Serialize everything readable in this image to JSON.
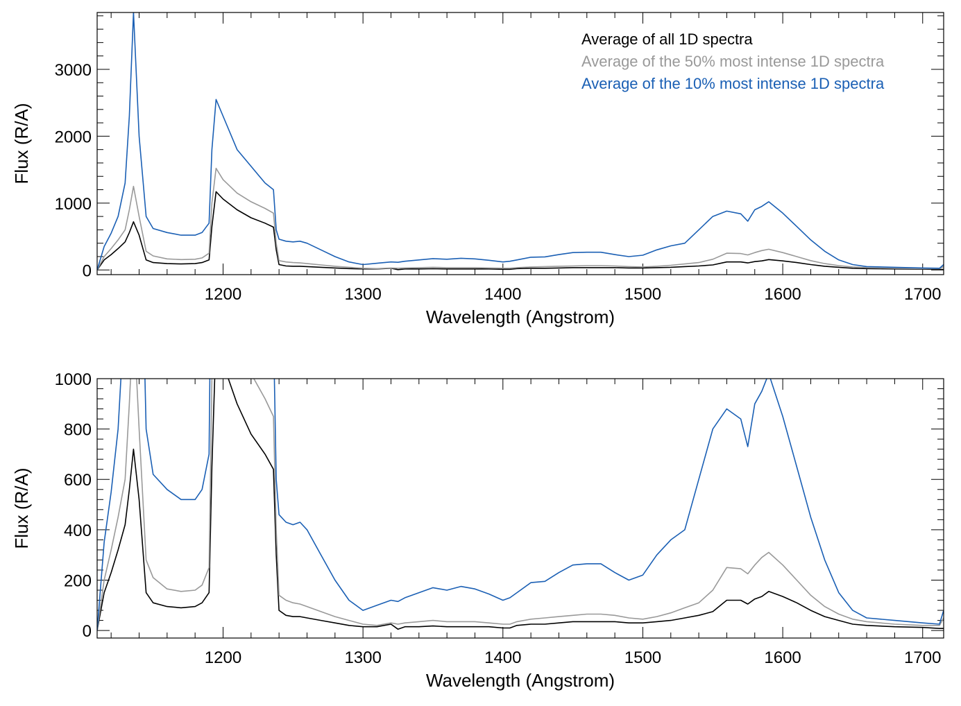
{
  "chart_data": [
    {
      "type": "line",
      "title": "",
      "xlabel": "Wavelength (Angstrom)",
      "ylabel": "Flux (R/A)",
      "xlim": [
        1110,
        1715
      ],
      "ylim": [
        -70,
        3850
      ],
      "xticks": [
        1200,
        1300,
        1400,
        1500,
        1600,
        1700
      ],
      "xtick_labels": [
        "1200",
        "1300",
        "1400",
        "1500",
        "1600",
        "1700"
      ],
      "yticks": [
        0,
        1000,
        2000,
        3000
      ],
      "ytick_labels": [
        "0",
        "1000",
        "2000",
        "3000"
      ],
      "legend": {
        "position": "top-right",
        "entries": [
          {
            "label": "Average of all 1D spectra",
            "color": "#000000"
          },
          {
            "label": "Average of the 50% most intense 1D spectra",
            "color": "#999999"
          },
          {
            "label": "Average of the 10% most intense 1D spectra",
            "color": "#1a5fb4"
          }
        ]
      },
      "series": [
        {
          "name": "Average of all 1D spectra",
          "color": "#000000",
          "x": [
            1110,
            1115,
            1120,
            1125,
            1130,
            1133,
            1136,
            1140,
            1145,
            1150,
            1160,
            1170,
            1180,
            1185,
            1190,
            1192,
            1195,
            1200,
            1210,
            1220,
            1230,
            1236,
            1238,
            1240,
            1245,
            1250,
            1255,
            1260,
            1270,
            1280,
            1290,
            1300,
            1310,
            1320,
            1325,
            1330,
            1340,
            1350,
            1360,
            1370,
            1380,
            1390,
            1400,
            1405,
            1410,
            1420,
            1430,
            1440,
            1450,
            1460,
            1470,
            1480,
            1490,
            1500,
            1510,
            1520,
            1530,
            1540,
            1550,
            1560,
            1570,
            1575,
            1580,
            1585,
            1590,
            1600,
            1610,
            1620,
            1630,
            1640,
            1650,
            1660,
            1680,
            1700,
            1712,
            1715
          ],
          "y": [
            0,
            150,
            230,
            320,
            420,
            560,
            720,
            520,
            150,
            110,
            95,
            90,
            95,
            110,
            150,
            650,
            1170,
            1060,
            900,
            780,
            700,
            640,
            300,
            80,
            60,
            55,
            55,
            50,
            40,
            30,
            20,
            15,
            15,
            25,
            5,
            15,
            15,
            18,
            15,
            15,
            15,
            15,
            10,
            10,
            20,
            25,
            25,
            30,
            35,
            35,
            35,
            35,
            30,
            30,
            35,
            40,
            50,
            60,
            75,
            120,
            120,
            105,
            125,
            135,
            155,
            135,
            110,
            80,
            55,
            40,
            25,
            20,
            15,
            12,
            8,
            8
          ]
        },
        {
          "name": "Average of the 50% most intense 1D spectra",
          "color": "#999999",
          "x": [
            1110,
            1115,
            1120,
            1125,
            1130,
            1133,
            1136,
            1140,
            1145,
            1150,
            1160,
            1170,
            1180,
            1185,
            1190,
            1192,
            1195,
            1200,
            1210,
            1220,
            1230,
            1236,
            1238,
            1240,
            1245,
            1250,
            1255,
            1260,
            1270,
            1280,
            1290,
            1300,
            1310,
            1320,
            1325,
            1330,
            1340,
            1350,
            1360,
            1370,
            1380,
            1390,
            1400,
            1405,
            1410,
            1420,
            1430,
            1440,
            1450,
            1460,
            1470,
            1480,
            1490,
            1500,
            1510,
            1520,
            1530,
            1540,
            1550,
            1560,
            1570,
            1575,
            1580,
            1585,
            1590,
            1600,
            1610,
            1620,
            1630,
            1640,
            1650,
            1660,
            1680,
            1700,
            1712,
            1715
          ],
          "y": [
            0,
            200,
            320,
            450,
            600,
            900,
            1250,
            800,
            280,
            210,
            165,
            155,
            160,
            180,
            250,
            1000,
            1520,
            1350,
            1150,
            1020,
            920,
            850,
            400,
            140,
            120,
            110,
            105,
            95,
            75,
            55,
            40,
            25,
            20,
            30,
            25,
            30,
            35,
            40,
            35,
            35,
            35,
            30,
            25,
            25,
            35,
            45,
            50,
            55,
            60,
            65,
            65,
            60,
            50,
            45,
            55,
            70,
            90,
            110,
            160,
            250,
            245,
            225,
            260,
            290,
            310,
            260,
            200,
            140,
            95,
            65,
            45,
            35,
            25,
            20,
            20,
            50
          ]
        },
        {
          "name": "Average of the 10% most intense 1D spectra",
          "color": "#1a5fb4",
          "x": [
            1110,
            1115,
            1120,
            1125,
            1130,
            1133,
            1136,
            1140,
            1145,
            1150,
            1160,
            1170,
            1180,
            1185,
            1190,
            1192,
            1195,
            1200,
            1210,
            1220,
            1230,
            1236,
            1238,
            1240,
            1245,
            1250,
            1255,
            1260,
            1270,
            1280,
            1290,
            1300,
            1310,
            1320,
            1325,
            1330,
            1340,
            1350,
            1360,
            1370,
            1380,
            1390,
            1400,
            1405,
            1410,
            1420,
            1430,
            1440,
            1450,
            1460,
            1470,
            1480,
            1490,
            1500,
            1510,
            1520,
            1530,
            1540,
            1550,
            1560,
            1570,
            1575,
            1580,
            1585,
            1590,
            1600,
            1610,
            1620,
            1630,
            1640,
            1650,
            1660,
            1680,
            1700,
            1712,
            1715
          ],
          "y": [
            0,
            350,
            550,
            800,
            1300,
            2300,
            3850,
            2000,
            800,
            620,
            560,
            520,
            520,
            560,
            700,
            1800,
            2550,
            2300,
            1800,
            1550,
            1300,
            1200,
            600,
            460,
            430,
            420,
            430,
            400,
            300,
            200,
            120,
            80,
            100,
            120,
            115,
            130,
            150,
            170,
            160,
            175,
            165,
            145,
            120,
            130,
            150,
            190,
            195,
            230,
            260,
            265,
            265,
            230,
            200,
            220,
            300,
            360,
            400,
            600,
            800,
            880,
            840,
            730,
            900,
            950,
            1020,
            850,
            650,
            450,
            280,
            150,
            80,
            50,
            40,
            30,
            25,
            80
          ]
        }
      ]
    },
    {
      "type": "line",
      "title": "",
      "xlabel": "Wavelength (Angstrom)",
      "ylabel": "Flux (R/A)",
      "xlim": [
        1110,
        1715
      ],
      "ylim": [
        -30,
        1000
      ],
      "xticks": [
        1200,
        1300,
        1400,
        1500,
        1600,
        1700
      ],
      "xtick_labels": [
        "1200",
        "1300",
        "1400",
        "1500",
        "1600",
        "1700"
      ],
      "yticks": [
        0,
        200,
        400,
        600,
        800,
        1000
      ],
      "ytick_labels": [
        "0",
        "200",
        "400",
        "600",
        "800",
        "1000"
      ],
      "series_ref": "same as panel 1"
    }
  ]
}
